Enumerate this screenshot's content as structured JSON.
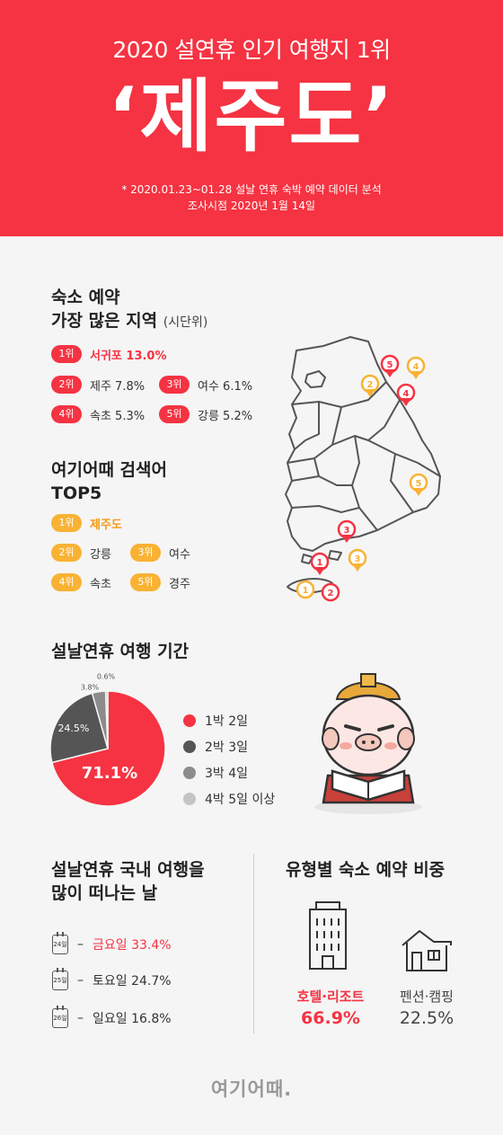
{
  "header": {
    "subtitle": "2020 설연휴 인기 여행지 1위",
    "main_title": "‘제주도’",
    "note_line1": "* 2020.01.23~01.28 설날 연휴 숙박 예약 데이터 분석",
    "note_line2": "조사시점 2020년 1월 14일"
  },
  "accommodation": {
    "title_line1": "숙소 예약",
    "title_line2": "가장 많은 지역",
    "title_suffix": "(시단위)",
    "ranks": [
      {
        "rank": "1위",
        "text": "서귀포 13.0%"
      },
      {
        "rank": "2위",
        "text": "제주 7.8%"
      },
      {
        "rank": "3위",
        "text": "여수 6.1%"
      },
      {
        "rank": "4위",
        "text": "속초 5.3%"
      },
      {
        "rank": "5위",
        "text": "강릉 5.2%"
      }
    ]
  },
  "search": {
    "title_line1": "여기어때 검색어",
    "title_line2": "TOP5",
    "ranks": [
      {
        "rank": "1위",
        "text": "제주도"
      },
      {
        "rank": "2위",
        "text": "강릉"
      },
      {
        "rank": "3위",
        "text": "여수"
      },
      {
        "rank": "4위",
        "text": "속초"
      },
      {
        "rank": "5위",
        "text": "경주"
      }
    ]
  },
  "map_pins": {
    "red": [
      "1",
      "2",
      "3",
      "4",
      "5"
    ],
    "orange": [
      "1",
      "2",
      "3",
      "4",
      "5"
    ]
  },
  "trip_length": {
    "title": "설날연휴 여행 기간",
    "colors": [
      "#f53342",
      "#555555",
      "#8c8c8c",
      "#c4c4c4"
    ]
  },
  "chart_data": {
    "type": "pie",
    "categories": [
      "1박 2일",
      "2박 3일",
      "3박 4일",
      "4박 5일 이상"
    ],
    "values": [
      71.1,
      24.5,
      3.8,
      0.6
    ],
    "value_labels": [
      "71.1%",
      "24.5%",
      "3.8%",
      "0.6%"
    ],
    "title": "설날연휴 여행 기간"
  },
  "departure": {
    "title_line1": "설날연휴 국내 여행을",
    "title_line2": "많이 떠나는 날",
    "rows": [
      {
        "cal": "24일",
        "dash": "–",
        "text": "금요일 33.4%"
      },
      {
        "cal": "25일",
        "dash": "–",
        "text": "토요일 24.7%"
      },
      {
        "cal": "26일",
        "dash": "–",
        "text": "일요일 16.8%"
      }
    ]
  },
  "lodging_type": {
    "title": "유형별 숙소 예약 비중",
    "items": [
      {
        "label": "호텔·리조트",
        "pct": "66.9%"
      },
      {
        "label": "펜션·캠핑",
        "pct": "22.5%"
      }
    ]
  },
  "footer": {
    "logo": "여기어때."
  }
}
